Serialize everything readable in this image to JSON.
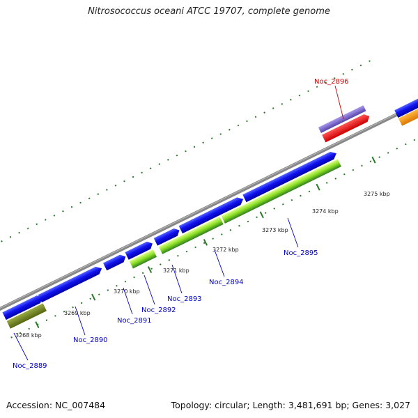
{
  "title": "Nitrosococcus oceani ATCC 19707, complete genome",
  "footer": {
    "accession": "Accession: NC_007484",
    "summary": "Topology: circular; Length: 3,481,691 bp; Genes: 3,027"
  },
  "scale_labels": [
    "3268 kbp",
    "3269 kbp",
    "3270 kbp",
    "3271 kbp",
    "3272 kbp",
    "3273 kbp",
    "3274 kbp",
    "3275 kbp"
  ],
  "gene_labels": [
    "Noc_2889",
    "Noc_2890",
    "Noc_2891",
    "Noc_2892",
    "Noc_2893",
    "Noc_2894",
    "Noc_2895",
    "Noc_2896"
  ],
  "colors": {
    "backbone": "#888888",
    "cds": "#0000dd",
    "gene_label": "#0000cc",
    "highlight_label": "#cc0000",
    "highlight_gene": "#ee0000",
    "highlight_blast": "#7766cc",
    "ruler": "#2a7a2a",
    "light_green": "#88dd22",
    "dark_green": "#338822",
    "olive": "#667722",
    "orange": "#ff8800"
  }
}
